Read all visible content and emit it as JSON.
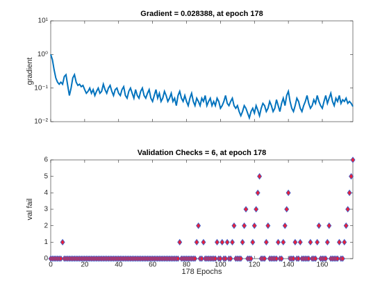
{
  "chart_data": [
    {
      "type": "line",
      "title": "Gradient = 0.028388, at epoch 178",
      "ylabel": "gradient",
      "ylog": true,
      "xlim": [
        0,
        178
      ],
      "xticks": [
        0,
        20,
        40,
        60,
        80,
        100,
        120,
        140,
        160
      ],
      "xticklabels_visible": false,
      "ylim": [
        0.01,
        10
      ],
      "yticks": [
        {
          "value": 0.01,
          "label": "10⁻²"
        },
        {
          "value": 0.1,
          "label": "10⁻¹"
        },
        {
          "value": 1,
          "label": "10⁰"
        },
        {
          "value": 10,
          "label": "10¹"
        }
      ],
      "x": [
        0,
        1,
        2,
        3,
        4,
        5,
        6,
        7,
        8,
        9,
        10,
        11,
        12,
        13,
        14,
        15,
        16,
        17,
        18,
        19,
        20,
        21,
        22,
        23,
        24,
        25,
        26,
        27,
        28,
        29,
        30,
        31,
        32,
        33,
        34,
        35,
        36,
        37,
        38,
        39,
        40,
        41,
        42,
        43,
        44,
        45,
        46,
        47,
        48,
        49,
        50,
        51,
        52,
        53,
        54,
        55,
        56,
        57,
        58,
        59,
        60,
        61,
        62,
        63,
        64,
        65,
        66,
        67,
        68,
        69,
        70,
        71,
        72,
        73,
        74,
        75,
        76,
        77,
        78,
        79,
        80,
        81,
        82,
        83,
        84,
        85,
        86,
        87,
        88,
        89,
        90,
        91,
        92,
        93,
        94,
        95,
        96,
        97,
        98,
        99,
        100,
        101,
        102,
        103,
        104,
        105,
        106,
        107,
        108,
        109,
        110,
        111,
        112,
        113,
        114,
        115,
        116,
        117,
        118,
        119,
        120,
        121,
        122,
        123,
        124,
        125,
        126,
        127,
        128,
        129,
        130,
        131,
        132,
        133,
        134,
        135,
        136,
        137,
        138,
        139,
        140,
        141,
        142,
        143,
        144,
        145,
        146,
        147,
        148,
        149,
        150,
        151,
        152,
        153,
        154,
        155,
        156,
        157,
        158,
        159,
        160,
        161,
        162,
        163,
        164,
        165,
        166,
        167,
        168,
        169,
        170,
        171,
        172,
        173,
        174,
        175,
        176,
        177,
        178
      ],
      "series": [
        {
          "color": "#0072bd",
          "values": [
            1.0,
            0.7,
            0.35,
            0.2,
            0.15,
            0.13,
            0.15,
            0.13,
            0.22,
            0.25,
            0.12,
            0.06,
            0.1,
            0.2,
            0.25,
            0.15,
            0.12,
            0.13,
            0.11,
            0.12,
            0.09,
            0.07,
            0.08,
            0.1,
            0.07,
            0.09,
            0.06,
            0.08,
            0.1,
            0.07,
            0.08,
            0.13,
            0.09,
            0.07,
            0.1,
            0.12,
            0.08,
            0.06,
            0.09,
            0.1,
            0.07,
            0.06,
            0.09,
            0.11,
            0.06,
            0.05,
            0.08,
            0.1,
            0.07,
            0.05,
            0.09,
            0.06,
            0.05,
            0.08,
            0.1,
            0.06,
            0.05,
            0.07,
            0.09,
            0.05,
            0.04,
            0.06,
            0.09,
            0.05,
            0.07,
            0.04,
            0.05,
            0.08,
            0.06,
            0.04,
            0.05,
            0.07,
            0.04,
            0.05,
            0.03,
            0.06,
            0.08,
            0.05,
            0.04,
            0.06,
            0.04,
            0.03,
            0.05,
            0.07,
            0.04,
            0.03,
            0.05,
            0.04,
            0.03,
            0.05,
            0.04,
            0.06,
            0.03,
            0.04,
            0.05,
            0.03,
            0.04,
            0.03,
            0.05,
            0.04,
            0.025,
            0.03,
            0.04,
            0.06,
            0.035,
            0.03,
            0.04,
            0.05,
            0.03,
            0.025,
            0.03,
            0.02,
            0.015,
            0.02,
            0.03,
            0.025,
            0.018,
            0.013,
            0.02,
            0.025,
            0.018,
            0.03,
            0.022,
            0.015,
            0.025,
            0.035,
            0.03,
            0.02,
            0.025,
            0.04,
            0.03,
            0.02,
            0.025,
            0.045,
            0.03,
            0.02,
            0.035,
            0.05,
            0.03,
            0.06,
            0.08,
            0.04,
            0.025,
            0.02,
            0.03,
            0.05,
            0.04,
            0.025,
            0.02,
            0.03,
            0.04,
            0.06,
            0.035,
            0.025,
            0.03,
            0.045,
            0.035,
            0.06,
            0.04,
            0.03,
            0.025,
            0.04,
            0.06,
            0.035,
            0.05,
            0.07,
            0.04,
            0.03,
            0.05,
            0.04,
            0.06,
            0.035,
            0.045,
            0.04,
            0.05,
            0.035,
            0.04,
            0.035,
            0.028388
          ]
        }
      ]
    },
    {
      "type": "scatter",
      "title": "Validation Checks = 6, at epoch 178",
      "xlabel": "178 Epochs",
      "ylabel": "val fail",
      "xlim": [
        0,
        178
      ],
      "xticks": [
        0,
        20,
        40,
        60,
        80,
        100,
        120,
        140,
        160
      ],
      "xticklabels_visible": true,
      "ylim": [
        0,
        6
      ],
      "yticks": [
        0,
        1,
        2,
        3,
        4,
        5,
        6
      ],
      "x": [
        0,
        1,
        2,
        3,
        4,
        5,
        6,
        7,
        8,
        9,
        10,
        11,
        12,
        13,
        14,
        15,
        16,
        17,
        18,
        19,
        20,
        21,
        22,
        23,
        24,
        25,
        26,
        27,
        28,
        29,
        30,
        31,
        32,
        33,
        34,
        35,
        36,
        37,
        38,
        39,
        40,
        41,
        42,
        43,
        44,
        45,
        46,
        47,
        48,
        49,
        50,
        51,
        52,
        53,
        54,
        55,
        56,
        57,
        58,
        59,
        60,
        61,
        62,
        63,
        64,
        65,
        66,
        67,
        68,
        69,
        70,
        71,
        72,
        73,
        74,
        75,
        76,
        77,
        78,
        79,
        80,
        81,
        82,
        83,
        84,
        85,
        86,
        87,
        88,
        89,
        90,
        91,
        92,
        93,
        94,
        95,
        96,
        97,
        98,
        99,
        100,
        101,
        102,
        103,
        104,
        105,
        106,
        107,
        108,
        109,
        110,
        111,
        112,
        113,
        114,
        115,
        116,
        117,
        118,
        119,
        120,
        121,
        122,
        123,
        124,
        125,
        126,
        127,
        128,
        129,
        130,
        131,
        132,
        133,
        134,
        135,
        136,
        137,
        138,
        139,
        140,
        141,
        142,
        143,
        144,
        145,
        146,
        147,
        148,
        149,
        150,
        151,
        152,
        153,
        154,
        155,
        156,
        157,
        158,
        159,
        160,
        161,
        162,
        163,
        164,
        165,
        166,
        167,
        168,
        169,
        170,
        171,
        172,
        173,
        174,
        175,
        176,
        177,
        178
      ],
      "series": [
        {
          "color": "#e8213a",
          "edge_color": "#3a5fcd",
          "values": [
            0,
            0,
            0,
            0,
            0,
            0,
            0,
            1,
            0,
            0,
            0,
            0,
            0,
            0,
            0,
            0,
            0,
            0,
            0,
            0,
            0,
            0,
            0,
            0,
            0,
            0,
            0,
            0,
            0,
            0,
            0,
            0,
            0,
            0,
            0,
            0,
            0,
            0,
            0,
            0,
            0,
            0,
            0,
            0,
            0,
            0,
            0,
            0,
            0,
            0,
            0,
            0,
            0,
            0,
            0,
            0,
            0,
            0,
            0,
            0,
            0,
            0,
            0,
            0,
            0,
            0,
            0,
            0,
            0,
            0,
            0,
            0,
            0,
            0,
            0,
            0,
            1,
            0,
            0,
            0,
            0,
            0,
            0,
            0,
            0,
            0,
            1,
            2,
            0,
            0,
            1,
            0,
            0,
            0,
            0,
            0,
            0,
            0,
            1,
            0,
            0,
            1,
            0,
            0,
            1,
            0,
            0,
            1,
            2,
            0,
            0,
            0,
            0,
            1,
            2,
            3,
            0,
            0,
            0,
            1,
            2,
            3,
            4,
            5,
            0,
            0,
            0,
            1,
            2,
            0,
            0,
            0,
            0,
            0,
            1,
            0,
            0,
            1,
            2,
            3,
            4,
            0,
            0,
            0,
            1,
            0,
            0,
            1,
            0,
            0,
            0,
            0,
            0,
            1,
            0,
            0,
            0,
            1,
            2,
            0,
            0,
            0,
            0,
            1,
            2,
            0,
            0,
            0,
            0,
            0,
            1,
            0,
            0,
            1,
            2,
            3,
            4,
            5,
            6
          ]
        }
      ]
    }
  ]
}
